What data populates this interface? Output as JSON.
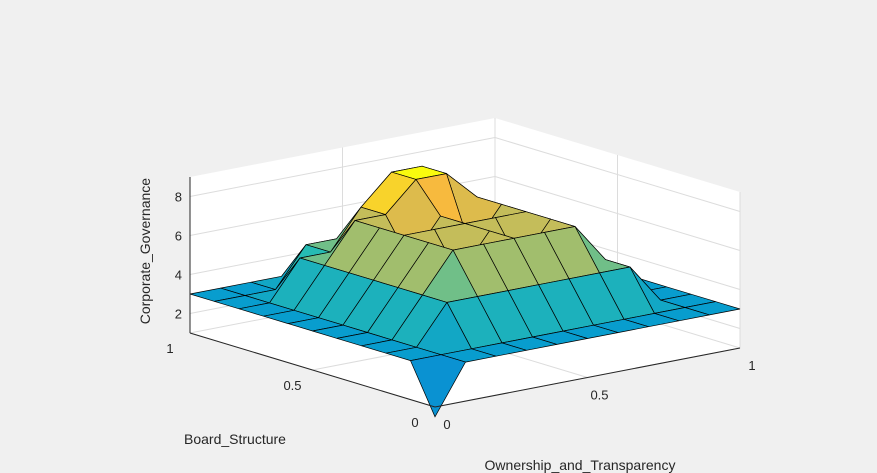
{
  "chart_data": {
    "type": "surface",
    "title": "",
    "xlabel": "Ownership_and_Transparency",
    "ylabel": "Board_Structure",
    "zlabel": "Corporate_Governance",
    "x_ticks": [
      "0",
      "0.5",
      "1"
    ],
    "y_ticks": [
      "0",
      "0.5",
      "1"
    ],
    "z_ticks": [
      "2",
      "4",
      "6",
      "8"
    ],
    "xlim": [
      0,
      1
    ],
    "ylim": [
      0,
      1
    ],
    "zlim": [
      1,
      9
    ],
    "grid": true,
    "colormap": "parula",
    "x": [
      0,
      0.1,
      0.2,
      0.3,
      0.4,
      0.5,
      0.6,
      0.7,
      0.8,
      0.9,
      1
    ],
    "y": [
      0,
      0.1,
      0.2,
      0.3,
      0.4,
      0.5,
      0.6,
      0.7,
      0.8,
      0.9,
      1
    ],
    "z": [
      [
        0.5,
        3.0,
        3.0,
        3.0,
        3.0,
        3.0,
        3.0,
        3.0,
        3.0,
        3.0,
        3.0
      ],
      [
        3.0,
        3.0,
        3.0,
        3.0,
        3.0,
        3.0,
        3.0,
        3.0,
        3.0,
        3.0,
        3.0
      ],
      [
        3.0,
        3.0,
        5.0,
        5.0,
        5.0,
        5.0,
        5.0,
        5.0,
        5.0,
        3.0,
        3.0
      ],
      [
        3.0,
        3.0,
        5.0,
        7.0,
        7.0,
        7.0,
        7.0,
        7.0,
        5.0,
        3.0,
        3.0
      ],
      [
        3.0,
        3.0,
        5.0,
        7.0,
        5.0,
        7.0,
        5.0,
        7.0,
        5.0,
        3.0,
        3.0
      ],
      [
        3.0,
        3.0,
        5.0,
        7.0,
        7.0,
        7.0,
        7.0,
        7.0,
        5.0,
        3.0,
        3.0
      ],
      [
        3.0,
        3.0,
        5.0,
        7.0,
        5.0,
        7.0,
        5.0,
        7.0,
        5.0,
        3.0,
        3.0
      ],
      [
        3.0,
        3.0,
        5.0,
        7.0,
        7.0,
        8.5,
        8.5,
        7.0,
        5.0,
        3.0,
        3.0
      ],
      [
        3.0,
        3.0,
        5.0,
        5.0,
        7.0,
        8.5,
        8.5,
        7.0,
        5.0,
        3.0,
        3.0
      ],
      [
        3.0,
        3.0,
        3.0,
        5.0,
        5.0,
        5.0,
        5.0,
        5.0,
        3.0,
        3.0,
        3.0
      ],
      [
        3.0,
        3.0,
        3.0,
        3.0,
        3.0,
        3.0,
        3.0,
        3.0,
        3.0,
        3.0,
        3.0
      ]
    ]
  },
  "colors": {
    "figure_bg": "#f0f0f0",
    "axes_bg": "#ffffff",
    "axis_line": "#262626",
    "grid": "#dcdcdc",
    "edge": "#000000"
  }
}
